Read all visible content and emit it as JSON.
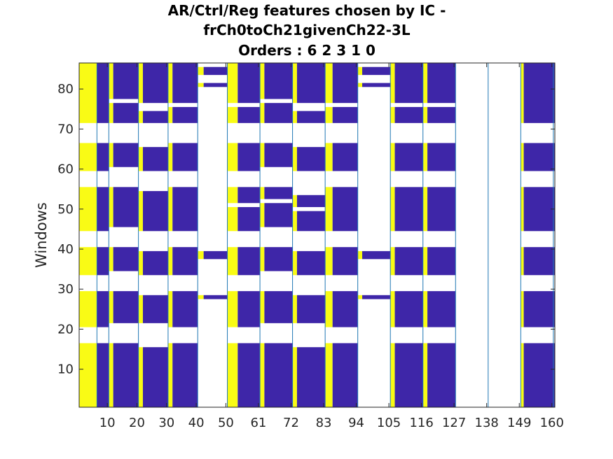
{
  "chart_data": {
    "type": "heatmap",
    "title_lines": [
      "AR/Ctrl/Reg features chosen by IC -",
      "frCh0toCh21givenCh22-3L",
      "Orders : 6 2 3 1 0"
    ],
    "xlabel": "",
    "ylabel": "Windows",
    "x_ticks": [
      10,
      20,
      30,
      40,
      50,
      61,
      72,
      83,
      94,
      105,
      116,
      127,
      138,
      149,
      160
    ],
    "y_ticks": [
      10,
      20,
      30,
      40,
      50,
      60,
      70,
      80
    ],
    "xlim": [
      0.5,
      161
    ],
    "ylim": [
      0.5,
      86.5
    ],
    "grid": false,
    "colors": {
      "selected": "#3e26a8",
      "ar_feature": "#f9fb15",
      "not_chosen": "#ffffff",
      "separator": "#1f77b4"
    },
    "group_boundaries": [
      6.5,
      10.5,
      20.5,
      30.5,
      40.5,
      50.5,
      61.5,
      72.5,
      83.5,
      94.5,
      105.5,
      116.5,
      127.5,
      138.5,
      149.5,
      160.5
    ],
    "row_blocks": {
      "A": [
        [
          1,
          16
        ],
        [
          21,
          29
        ],
        [
          34,
          40
        ],
        [
          45,
          55
        ],
        [
          60,
          66
        ],
        [
          72,
          86
        ]
      ],
      "B": [
        [
          1,
          16
        ],
        [
          22,
          29
        ],
        [
          35,
          40
        ],
        [
          46,
          55
        ],
        [
          61,
          66
        ],
        [
          72,
          76
        ],
        [
          78,
          86
        ]
      ],
      "C": [
        [
          1,
          15
        ],
        [
          22,
          28
        ],
        [
          34,
          39
        ],
        [
          45,
          54
        ],
        [
          60,
          65
        ],
        [
          72,
          74
        ],
        [
          77,
          86
        ]
      ],
      "D": [
        [
          1,
          16
        ],
        [
          21,
          29
        ],
        [
          34,
          40
        ],
        [
          45,
          55
        ],
        [
          60,
          66
        ],
        [
          72,
          75
        ],
        [
          77,
          86
        ]
      ],
      "E": [
        [
          28,
          28
        ],
        [
          38,
          39
        ],
        [
          81,
          81
        ],
        [
          84,
          85
        ]
      ],
      "F": [
        [
          1,
          16
        ],
        [
          21,
          29
        ],
        [
          34,
          40
        ],
        [
          45,
          50
        ],
        [
          52,
          55
        ],
        [
          60,
          66
        ],
        [
          72,
          75
        ],
        [
          77,
          86
        ]
      ],
      "G": [
        [
          1,
          16
        ],
        [
          22,
          29
        ],
        [
          35,
          40
        ],
        [
          46,
          51
        ],
        [
          53,
          55
        ],
        [
          61,
          66
        ],
        [
          72,
          76
        ],
        [
          78,
          86
        ]
      ],
      "H": [
        [
          1,
          15
        ],
        [
          22,
          28
        ],
        [
          34,
          39
        ],
        [
          45,
          49
        ],
        [
          51,
          53
        ],
        [
          60,
          65
        ],
        [
          72,
          74
        ],
        [
          77,
          86
        ]
      ],
      "I": [
        [
          1,
          16
        ],
        [
          21,
          29
        ],
        [
          34,
          40
        ],
        [
          45,
          55
        ],
        [
          60,
          66
        ],
        [
          72,
          75
        ],
        [
          77,
          86
        ]
      ],
      "J": [
        [
          1,
          16
        ],
        [
          21,
          29
        ],
        [
          34,
          40
        ],
        [
          45,
          55
        ],
        [
          60,
          66
        ],
        [
          72,
          75
        ],
        [
          77,
          86
        ]
      ]
    },
    "segments": [
      {
        "x_range": [
          0.5,
          6.5
        ],
        "color": "ar_feature",
        "rows": "A"
      },
      {
        "x_range": [
          6.5,
          10.5
        ],
        "color": "selected",
        "rows": "A"
      },
      {
        "x_range": [
          10.5,
          12
        ],
        "color": "ar_feature",
        "rows": "B"
      },
      {
        "x_range": [
          12,
          20.5
        ],
        "color": "selected",
        "rows": "B"
      },
      {
        "x_range": [
          20.5,
          22
        ],
        "color": "ar_feature",
        "rows": "C"
      },
      {
        "x_range": [
          22,
          30.5
        ],
        "color": "selected",
        "rows": "C"
      },
      {
        "x_range": [
          30.5,
          32
        ],
        "color": "ar_feature",
        "rows": "D"
      },
      {
        "x_range": [
          32,
          40.5
        ],
        "color": "selected",
        "rows": "D"
      },
      {
        "x_range": [
          40.5,
          42.5
        ],
        "color": "ar_feature",
        "rows": "E"
      },
      {
        "x_range": [
          42.5,
          50.5
        ],
        "color": "selected",
        "rows": "E"
      },
      {
        "x_range": [
          50.5,
          54
        ],
        "color": "ar_feature",
        "rows": "F"
      },
      {
        "x_range": [
          54,
          61.5
        ],
        "color": "selected",
        "rows": "F"
      },
      {
        "x_range": [
          61.5,
          63
        ],
        "color": "ar_feature",
        "rows": "G"
      },
      {
        "x_range": [
          63,
          72.5
        ],
        "color": "selected",
        "rows": "G"
      },
      {
        "x_range": [
          72.5,
          74
        ],
        "color": "ar_feature",
        "rows": "H"
      },
      {
        "x_range": [
          74,
          83.5
        ],
        "color": "selected",
        "rows": "H"
      },
      {
        "x_range": [
          83.5,
          86
        ],
        "color": "ar_feature",
        "rows": "I"
      },
      {
        "x_range": [
          86,
          94.5
        ],
        "color": "selected",
        "rows": "I"
      },
      {
        "x_range": [
          94.5,
          96
        ],
        "color": "ar_feature",
        "rows": "E"
      },
      {
        "x_range": [
          96,
          105.5
        ],
        "color": "selected",
        "rows": "E"
      },
      {
        "x_range": [
          105.5,
          107
        ],
        "color": "ar_feature",
        "rows": "J"
      },
      {
        "x_range": [
          107,
          116.5
        ],
        "color": "selected",
        "rows": "J"
      },
      {
        "x_range": [
          116.5,
          118
        ],
        "color": "ar_feature",
        "rows": "J"
      },
      {
        "x_range": [
          118,
          127.5
        ],
        "color": "selected",
        "rows": "J"
      },
      {
        "x_range": [
          149.5,
          150.5
        ],
        "color": "ar_feature",
        "rows": "A"
      },
      {
        "x_range": [
          150.5,
          161
        ],
        "color": "selected",
        "rows": "A"
      }
    ]
  }
}
